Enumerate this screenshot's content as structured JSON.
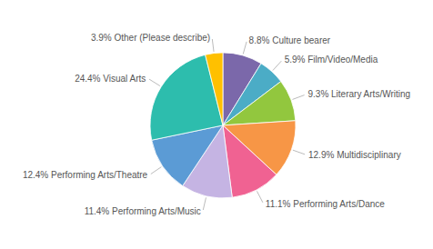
{
  "chart_data": {
    "type": "pie",
    "categories": [
      "8.8% Culture bearer",
      "5.9% Film/Video/Media",
      "9.3% Literary Arts/Writing",
      "12.9% Multidisciplinary",
      "11.1% Performing Arts/Dance",
      "11.4% Performing Arts/Music",
      "12.4% Performing Arts/Theatre",
      "24.4% Visual Arts",
      "3.9% Other (Please describe)"
    ],
    "values": [
      8.8,
      5.9,
      9.3,
      12.9,
      11.1,
      11.4,
      12.4,
      24.4,
      3.9
    ],
    "colors": [
      "#7B68AA",
      "#4BACC6",
      "#92C73E",
      "#F79646",
      "#F06292",
      "#C5B4E3",
      "#5B9BD5",
      "#2DBDAD",
      "#FFC000"
    ]
  }
}
